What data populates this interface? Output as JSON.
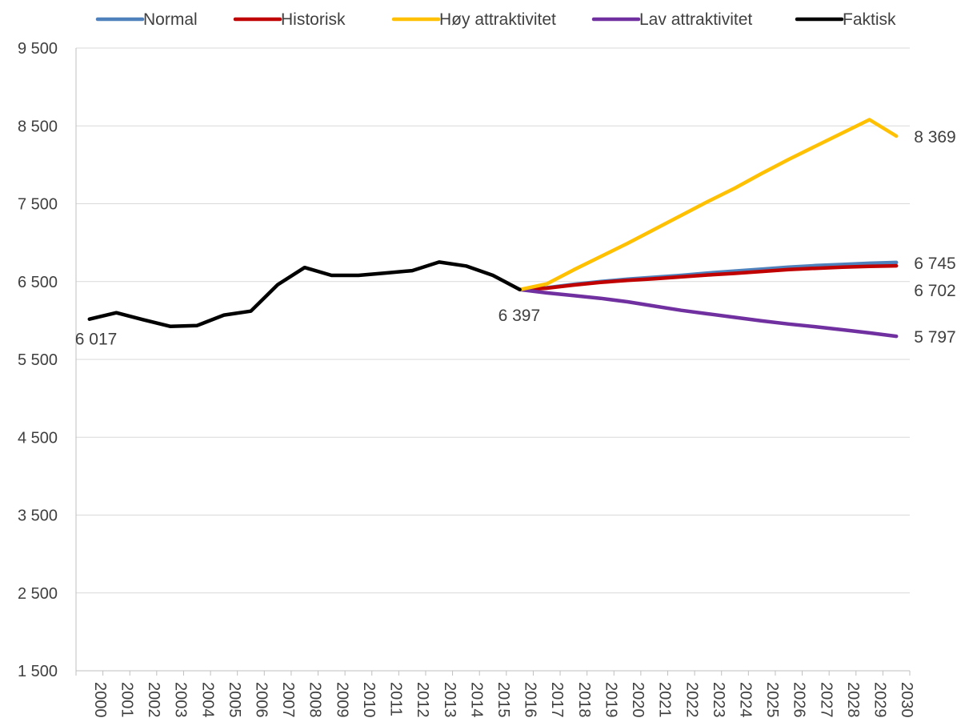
{
  "chart_data": {
    "type": "line",
    "x": [
      "2000",
      "2001",
      "2002",
      "2003",
      "2004",
      "2005",
      "2006",
      "2007",
      "2008",
      "2009",
      "2010",
      "2011",
      "2012",
      "2013",
      "2014",
      "2015",
      "2016",
      "2017",
      "2018",
      "2019",
      "2020",
      "2021",
      "2022",
      "2023",
      "2024",
      "2025",
      "2026",
      "2027",
      "2028",
      "2029",
      "2030"
    ],
    "ylim": [
      1500,
      9500
    ],
    "yticks": [
      1500,
      2500,
      3500,
      4500,
      5500,
      6500,
      7500,
      8500,
      9500
    ],
    "ytick_labels": [
      "1 500",
      "2 500",
      "3 500",
      "4 500",
      "5 500",
      "6 500",
      "7 500",
      "8 500",
      "9 500"
    ],
    "grid": "horizontal",
    "legend_position": "top",
    "series": [
      {
        "name": "Normal",
        "color": "#4F81BD",
        "values": [
          null,
          null,
          null,
          null,
          null,
          null,
          null,
          null,
          null,
          null,
          null,
          null,
          null,
          null,
          null,
          null,
          6397,
          6420,
          6465,
          6500,
          6530,
          6555,
          6580,
          6610,
          6635,
          6660,
          6685,
          6705,
          6720,
          6735,
          6745
        ]
      },
      {
        "name": "Historisk",
        "color": "#C00000",
        "values": [
          null,
          null,
          null,
          null,
          null,
          null,
          null,
          null,
          null,
          null,
          null,
          null,
          null,
          null,
          null,
          null,
          6397,
          6415,
          6455,
          6490,
          6515,
          6535,
          6560,
          6585,
          6605,
          6630,
          6655,
          6670,
          6685,
          6695,
          6702
        ]
      },
      {
        "name": "Høy attraktivitet",
        "color": "#FFC000",
        "values": [
          null,
          null,
          null,
          null,
          null,
          null,
          null,
          null,
          null,
          null,
          null,
          null,
          null,
          null,
          null,
          null,
          6397,
          6470,
          6650,
          6820,
          6990,
          7170,
          7350,
          7530,
          7700,
          7890,
          8070,
          8240,
          8410,
          8580,
          8369
        ]
      },
      {
        "name": "Lav attraktivitet",
        "color": "#7030A0",
        "values": [
          null,
          null,
          null,
          null,
          null,
          null,
          null,
          null,
          null,
          null,
          null,
          null,
          null,
          null,
          null,
          null,
          6397,
          6355,
          6320,
          6285,
          6240,
          6185,
          6130,
          6085,
          6040,
          5995,
          5955,
          5920,
          5880,
          5840,
          5797
        ]
      },
      {
        "name": "Faktisk",
        "color": "#000000",
        "values": [
          6017,
          6100,
          6010,
          5925,
          5935,
          6070,
          6120,
          6460,
          6680,
          6580,
          6580,
          6610,
          6640,
          6750,
          6700,
          6580,
          6397,
          null,
          null,
          null,
          null,
          null,
          null,
          null,
          null,
          null,
          null,
          null,
          null,
          null,
          null
        ]
      }
    ],
    "data_labels": [
      {
        "series": "Faktisk",
        "x": "2000",
        "value": 6017,
        "text": "6 017"
      },
      {
        "series": "Faktisk",
        "x": "2016",
        "value": 6397,
        "text": "6 397"
      },
      {
        "series": "Høy attraktivitet",
        "x": "2030",
        "value": 8369,
        "text": "8 369"
      },
      {
        "series": "Normal",
        "x": "2030",
        "value": 6745,
        "text": "6 745"
      },
      {
        "series": "Historisk",
        "x": "2030",
        "value": 6702,
        "text": "6 702"
      },
      {
        "series": "Lav attraktivitet",
        "x": "2030",
        "value": 5797,
        "text": "5 797"
      }
    ]
  }
}
